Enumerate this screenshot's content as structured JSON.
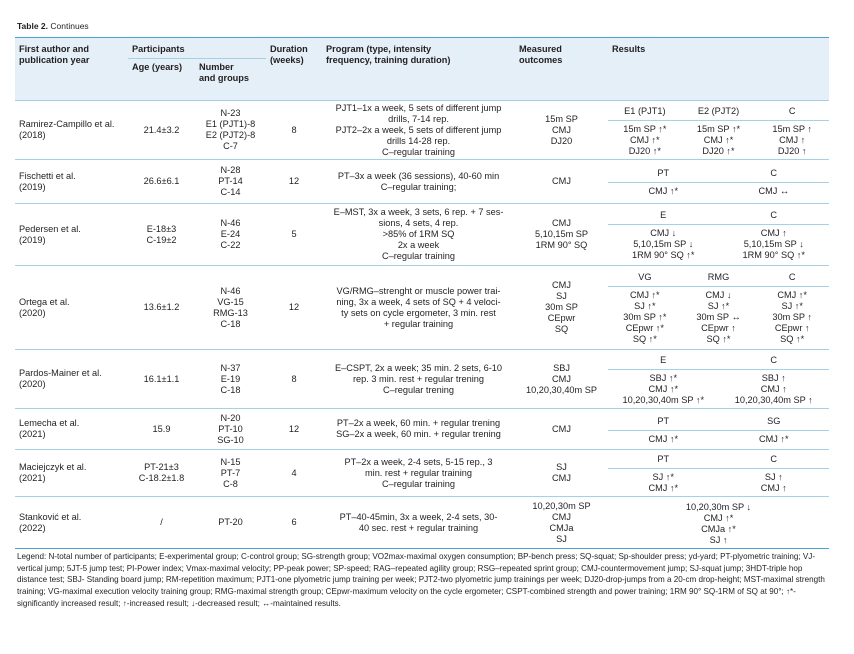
{
  "caption": {
    "bold": "Table 2.",
    "rest": " Continues"
  },
  "headers": {
    "author": "First author and publication year",
    "participants": "Participants",
    "age": "Age (years)",
    "number": "Number and groups",
    "duration": "Duration (weeks)",
    "program": "Program (type, intensity frequency, training duration)",
    "measured": "Measured outcomes",
    "results": "Results"
  },
  "rows": [
    {
      "author": [
        "Ramirez-Campillo et al.",
        "(2018)"
      ],
      "age": [
        "21.4±3.2"
      ],
      "groups": [
        "N-23",
        "E1 (PJT1)-8",
        "E2 (PJT2)-8",
        "C-7"
      ],
      "duration": "8",
      "program": [
        "PJT1–1x a week, 5 sets of different jump",
        "drills, 7-14 rep.",
        "PJT2–2x a week, 5 sets of different jump",
        "drills 14-28 rep.",
        "C–regular training"
      ],
      "measured": [
        "15m SP",
        "CMJ",
        "DJ20"
      ],
      "res_head": [
        "E1 (PJT1)",
        "E2 (PJT2)",
        "C"
      ],
      "res_cols": [
        [
          "15m SP ↑*",
          "CMJ ↑*",
          "DJ20 ↑*"
        ],
        [
          "15m SP ↑*",
          "CMJ ↑*",
          "DJ20 ↑*"
        ],
        [
          "15m SP ↑",
          "CMJ ↑",
          "DJ20 ↑"
        ]
      ]
    },
    {
      "author": [
        "Fischetti et al.",
        "(2019)"
      ],
      "age": [
        "26.6±6.1"
      ],
      "groups": [
        "N-28",
        "PT-14",
        "C-14"
      ],
      "duration": "12",
      "program": [
        "PT–3x a week (36 sessions), 40-60 min",
        "C–regular training;"
      ],
      "measured": [
        "CMJ"
      ],
      "res_head": [
        "PT",
        "C"
      ],
      "res_cols": [
        [
          "CMJ ↑*"
        ],
        [
          "CMJ ↔"
        ]
      ]
    },
    {
      "author": [
        "Pedersen et al.",
        "(2019)"
      ],
      "age": [
        "E-18±3",
        "C-19±2"
      ],
      "groups": [
        "N-46",
        "E-24",
        "C-22"
      ],
      "duration": "5",
      "program": [
        "E–MST, 3x a week, 3 sets, 6 rep. + 7 ses-",
        "sions, 4 sets, 4 rep.",
        ">85% of 1RM SQ",
        "2x a week",
        "C–regular training"
      ],
      "measured": [
        "CMJ",
        "5,10,15m SP",
        "1RM 90° SQ"
      ],
      "res_head": [
        "E",
        "C"
      ],
      "res_cols": [
        [
          "CMJ ↓",
          "5,10,15m SP ↓",
          "1RM 90° SQ ↑*"
        ],
        [
          "CMJ ↑",
          "5,10,15m SP ↓",
          "1RM 90° SQ ↑*"
        ]
      ]
    },
    {
      "author": [
        "Ortega et al.",
        "(2020)"
      ],
      "age": [
        "13.6±1.2"
      ],
      "groups": [
        "N-46",
        "VG-15",
        "RMG-13",
        "C-18"
      ],
      "duration": "12",
      "program": [
        "VG/RMG–strenght or muscle power trai-",
        "ning, 3x a week, 4 sets of SQ + 4 veloci-",
        "ty sets on cycle ergometer, 3 min. rest",
        "+ regular training"
      ],
      "measured": [
        "CMJ",
        "SJ",
        "30m SP",
        "CEpwr",
        "SQ"
      ],
      "res_head": [
        "VG",
        "RMG",
        "C"
      ],
      "res_cols": [
        [
          "CMJ ↑*",
          "SJ ↑*",
          "30m SP ↑*",
          "CEpwr ↑*",
          "SQ ↑*"
        ],
        [
          "CMJ ↓",
          "SJ ↑*",
          "30m SP ↔",
          "CEpwr ↑",
          "SQ ↑*"
        ],
        [
          "CMJ ↑*",
          "SJ ↑*",
          "30m SP ↑",
          "CEpwr ↑",
          "SQ ↑*"
        ]
      ]
    },
    {
      "author": [
        "Pardos-Mainer et al.",
        "(2020)"
      ],
      "age": [
        "16.1±1.1"
      ],
      "groups": [
        "N-37",
        "E-19",
        "C-18"
      ],
      "duration": "8",
      "program": [
        "E–CSPT, 2x a week; 35 min. 2 sets, 6-10",
        "rep. 3 min. rest + regular trening",
        "C–regular trening"
      ],
      "measured": [
        "SBJ",
        "CMJ",
        "10,20,30,40m SP"
      ],
      "res_head": [
        "E",
        "C"
      ],
      "res_cols": [
        [
          "SBJ ↑*",
          "CMJ ↑*",
          "10,20,30,40m SP ↑*"
        ],
        [
          "SBJ ↑",
          "CMJ ↑",
          "10,20,30,40m SP ↑"
        ]
      ]
    },
    {
      "author": [
        "Lemecha et al.",
        "(2021)"
      ],
      "age": [
        "15.9"
      ],
      "groups": [
        "N-20",
        "PT-10",
        "SG-10"
      ],
      "duration": "12",
      "program": [
        "PT–2x a week, 60 min. + regular trening",
        "SG–2x a week, 60 min. + regular trening"
      ],
      "measured": [
        "CMJ"
      ],
      "res_head": [
        "PT",
        "SG"
      ],
      "res_cols": [
        [
          "CMJ ↑*"
        ],
        [
          "CMJ ↑*"
        ]
      ]
    },
    {
      "author": [
        "Maciejczyk et al.",
        "(2021)"
      ],
      "age": [
        "PT-21±3",
        "C-18.2±1.8"
      ],
      "groups": [
        "N-15",
        "PT-7",
        "C-8"
      ],
      "duration": "4",
      "program": [
        "PT–2x a week, 2-4 sets, 5-15 rep., 3",
        "min. rest + regular training",
        "C–regular training"
      ],
      "measured": [
        "SJ",
        "CMJ"
      ],
      "res_head": [
        "PT",
        "C"
      ],
      "res_cols": [
        [
          "SJ ↑*",
          "CMJ ↑*"
        ],
        [
          "SJ ↑",
          "CMJ ↑"
        ]
      ]
    },
    {
      "author": [
        "Stanković et al.",
        "(2022)"
      ],
      "age": [
        "/"
      ],
      "groups": [
        "PT-20"
      ],
      "duration": "6",
      "program": [
        "PT–40-45min, 3x a week, 2-4 sets, 30-",
        "40 sec. rest + regular training"
      ],
      "measured": [
        "10,20,30m SP",
        "CMJ",
        "CMJa",
        "SJ"
      ],
      "res_head": [],
      "res_cols": [
        [
          "10,20,30m SP ↓",
          "CMJ ↑*",
          "CMJa ↑*",
          "SJ ↑"
        ]
      ]
    }
  ],
  "legend": "Legend: N-total number of participants; E-experimental group; C-control group; SG-strength group; VO2max-maximal oxygen consumption; BP-bench press; SQ-squat; Sp-shoulder press; yd-yard; PT-plyometric training; VJ-vertical jump; 5JT-5 jump test; PI-Power index; Vmax-maximal velocity; PP-peak power; SP-speed; RAG–repeated agility group; RSG–repeated sprint group; CMJ-countermovement jump; SJ-squat jump; 3HDT-triple hop distance test; SBJ- Standing board jump; RM-repetition maximum; PJT1-one plyometric jump training per week; PJT2-two plyometric jump trainings per week; DJ20-drop-jumps from a 20-cm drop-height; MST-maximal strength training; VG-maximal execution velocity training group; RMG-maximal strength group; CEpwr-maximum velocity on the cycle ergometer; CSPT-combined strength and power training; 1RM 90° SQ-1RM of SQ at 90°; ↑*-significantly increased result; ↑-increased result; ↓-decreased result; ↔-maintained results."
}
